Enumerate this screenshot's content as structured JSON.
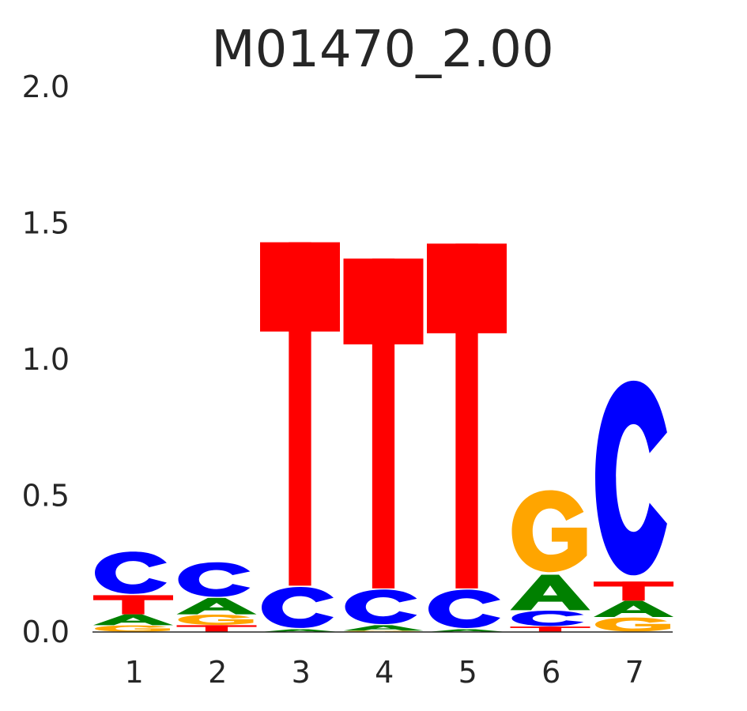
{
  "chart_data": {
    "type": "sequence-logo",
    "title": "M01470_2.00",
    "xlabel": "",
    "ylabel": "",
    "ylim": [
      0,
      2.0
    ],
    "yticks": [
      "0.0",
      "0.5",
      "1.0",
      "1.5",
      "2.0"
    ],
    "ytick_values": [
      0,
      0.5,
      1.0,
      1.5,
      2.0
    ],
    "positions": [
      "1",
      "2",
      "3",
      "4",
      "5",
      "6",
      "7"
    ],
    "grid": false,
    "colors": {
      "A": "#008000",
      "C": "#0000ff",
      "G": "#ffa500",
      "T": "#ff0000"
    },
    "columns": [
      {
        "position": "1",
        "stack": [
          {
            "letter": "G",
            "height": 0.025
          },
          {
            "letter": "A",
            "height": 0.04
          },
          {
            "letter": "T",
            "height": 0.07
          },
          {
            "letter": "C",
            "height": 0.165
          }
        ]
      },
      {
        "position": "2",
        "stack": [
          {
            "letter": "T",
            "height": 0.025
          },
          {
            "letter": "G",
            "height": 0.04
          },
          {
            "letter": "A",
            "height": 0.06
          },
          {
            "letter": "C",
            "height": 0.135
          }
        ]
      },
      {
        "position": "3",
        "stack": [
          {
            "letter": "A",
            "height": 0.01
          },
          {
            "letter": "C",
            "height": 0.16
          },
          {
            "letter": "T",
            "height": 1.26
          }
        ]
      },
      {
        "position": "4",
        "stack": [
          {
            "letter": "G",
            "height": 0.005
          },
          {
            "letter": "A",
            "height": 0.02
          },
          {
            "letter": "C",
            "height": 0.135
          },
          {
            "letter": "T",
            "height": 1.21
          }
        ]
      },
      {
        "position": "5",
        "stack": [
          {
            "letter": "A",
            "height": 0.01
          },
          {
            "letter": "C",
            "height": 0.15
          },
          {
            "letter": "T",
            "height": 1.265
          }
        ]
      },
      {
        "position": "6",
        "stack": [
          {
            "letter": "T",
            "height": 0.02
          },
          {
            "letter": "C",
            "height": 0.06
          },
          {
            "letter": "A",
            "height": 0.13
          },
          {
            "letter": "G",
            "height": 0.32
          }
        ]
      },
      {
        "position": "7",
        "stack": [
          {
            "letter": "G",
            "height": 0.055
          },
          {
            "letter": "A",
            "height": 0.06
          },
          {
            "letter": "T",
            "height": 0.07
          },
          {
            "letter": "C",
            "height": 0.76
          }
        ]
      }
    ]
  }
}
